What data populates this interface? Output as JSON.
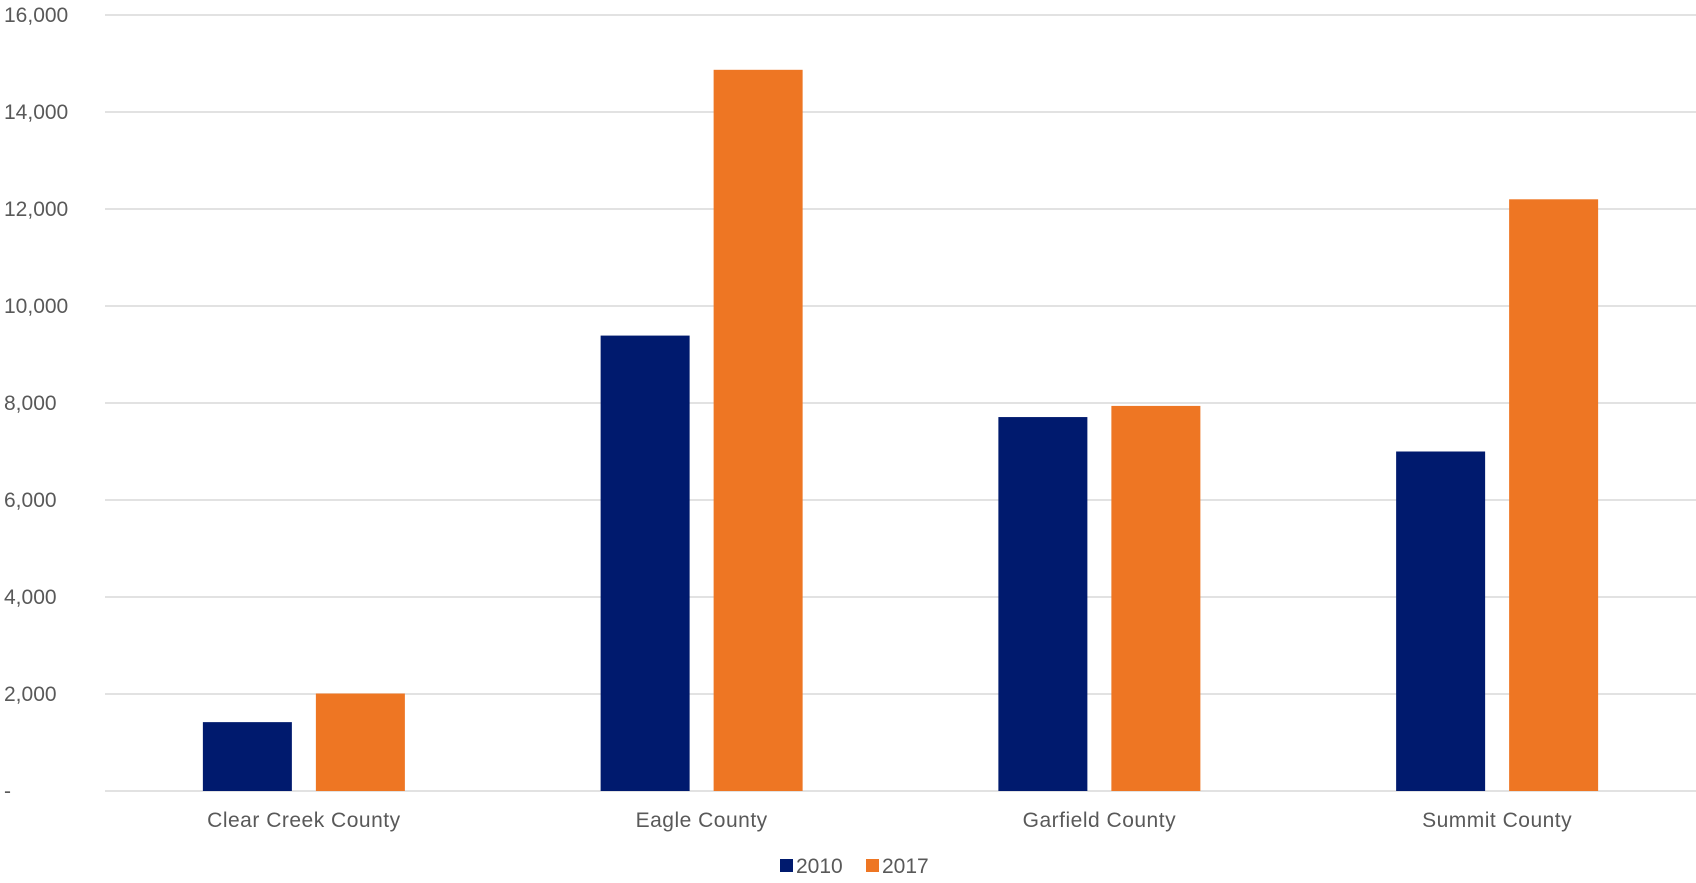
{
  "chart_data": {
    "type": "bar",
    "categories": [
      "Clear Creek County",
      "Eagle County",
      "Garfield County",
      "Summit County"
    ],
    "series": [
      {
        "name": "2010",
        "color": "#001a6e",
        "values": [
          1420,
          9390,
          7710,
          7000
        ]
      },
      {
        "name": "2017",
        "color": "#ee7623",
        "values": [
          2010,
          14870,
          7940,
          12200
        ]
      }
    ],
    "ylim": [
      0,
      16000
    ],
    "yticks": [
      0,
      2000,
      4000,
      6000,
      8000,
      10000,
      12000,
      14000,
      16000
    ],
    "ytick_labels": [
      "-",
      "2,000",
      "4,000",
      "6,000",
      "8,000",
      "10,000",
      "12,000",
      "14,000",
      "16,000"
    ],
    "grid": true,
    "legend_position": "bottom-center"
  }
}
